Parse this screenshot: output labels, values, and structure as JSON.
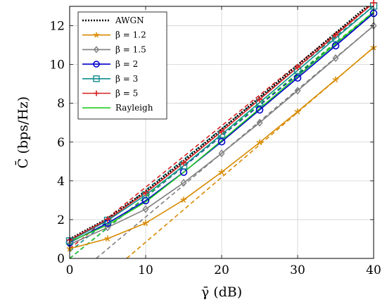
{
  "chart_data": {
    "type": "line",
    "xlabel": "γ̄ (dB)",
    "ylabel": "C̄ (bps/Hz)",
    "xlim": [
      0,
      40
    ],
    "ylim": [
      0,
      13
    ],
    "xticks": [
      0,
      10,
      20,
      30,
      40
    ],
    "yticks": [
      0,
      2,
      4,
      6,
      8,
      10,
      12
    ],
    "grid": true,
    "legend_position": "top-left",
    "x": [
      0,
      5,
      10,
      15,
      20,
      25,
      30,
      35,
      40
    ],
    "series": [
      {
        "name": "AWGN",
        "color": "#000000",
        "dash": "dotted",
        "marker": "none",
        "values": [
          1.0,
          2.06,
          3.46,
          5.03,
          6.66,
          8.31,
          9.97,
          11.63,
          13.29
        ]
      },
      {
        "name": "β = 1.2",
        "color": "#d88a00",
        "dash": "solid",
        "marker": "star",
        "values": [
          0.5,
          1.02,
          1.82,
          3.02,
          4.45,
          5.98,
          7.57,
          9.22,
          10.88
        ]
      },
      {
        "name": "β = 1.5",
        "color": "#7f7f7f",
        "dash": "solid",
        "marker": "diamond",
        "values": [
          0.72,
          1.6,
          2.54,
          3.9,
          5.42,
          7.0,
          8.65,
          10.33,
          12.0
        ]
      },
      {
        "name": "β = 2",
        "color": "#0000cc",
        "dash": "solid",
        "marker": "circle",
        "values": [
          0.82,
          1.82,
          2.98,
          4.45,
          6.02,
          7.66,
          9.31,
          10.97,
          12.64
        ]
      },
      {
        "name": "β = 3",
        "color": "#128c8c",
        "dash": "solid",
        "marker": "square",
        "values": [
          0.9,
          1.96,
          3.27,
          4.78,
          6.4,
          8.04,
          9.7,
          11.36,
          13.02
        ]
      },
      {
        "name": "β = 5",
        "color": "#d62020",
        "dash": "solid",
        "marker": "plus",
        "values": [
          0.95,
          2.02,
          3.38,
          4.93,
          6.55,
          8.2,
          9.86,
          11.52,
          13.18
        ]
      },
      {
        "name": "Rayleigh",
        "color": "#22cc22",
        "dash": "solid",
        "marker": "none",
        "values": [
          0.86,
          1.73,
          2.91,
          4.44,
          6.08,
          7.73,
          9.4,
          11.06,
          12.72
        ]
      }
    ],
    "asymptotes": [
      {
        "color": "#d88a00",
        "points": [
          [
            7.5,
            0
          ],
          [
            40,
            10.88
          ]
        ]
      },
      {
        "color": "#7f7f7f",
        "points": [
          [
            3.5,
            0
          ],
          [
            40,
            12.0
          ]
        ]
      },
      {
        "color": "#0000cc",
        "points": [
          [
            0,
            0.0
          ],
          [
            40,
            12.64
          ]
        ]
      },
      {
        "color": "#128c8c",
        "points": [
          [
            0,
            0.36
          ],
          [
            40,
            13.02
          ]
        ]
      },
      {
        "color": "#d62020",
        "points": [
          [
            0,
            0.5
          ],
          [
            40,
            13.18
          ]
        ]
      },
      {
        "color": "#22cc22",
        "points": [
          [
            0,
            0.0
          ],
          [
            40,
            12.72
          ]
        ]
      }
    ]
  }
}
